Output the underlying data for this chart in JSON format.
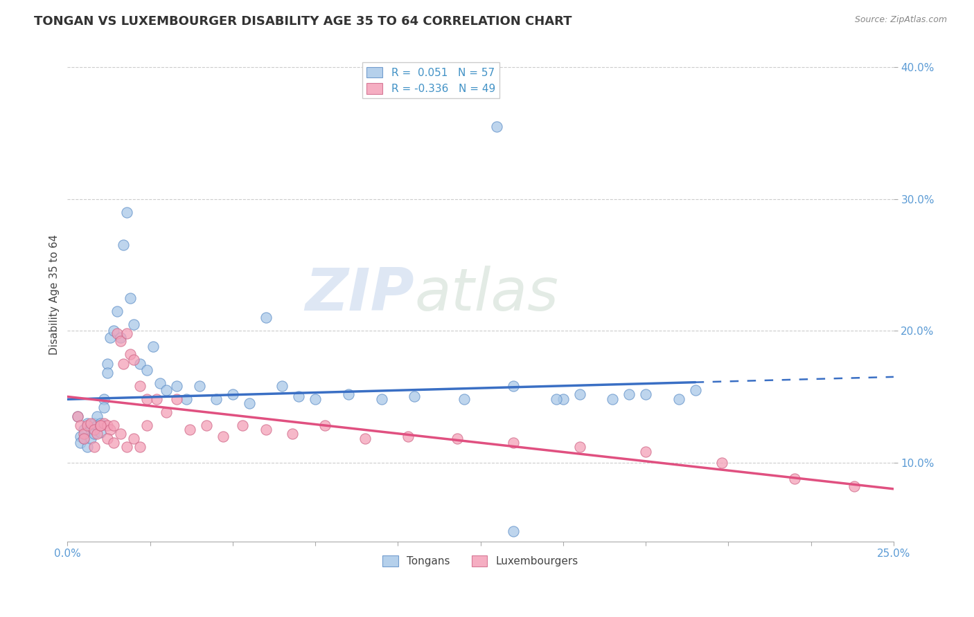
{
  "title": "TONGAN VS LUXEMBOURGER DISABILITY AGE 35 TO 64 CORRELATION CHART",
  "source_text": "Source: ZipAtlas.com",
  "ylabel": "Disability Age 35 to 64",
  "xlim": [
    0.0,
    0.25
  ],
  "ylim": [
    0.04,
    0.415
  ],
  "xticks": [
    0.0,
    0.025,
    0.05,
    0.075,
    0.1,
    0.125,
    0.15,
    0.175,
    0.2,
    0.225,
    0.25
  ],
  "xtick_labels": [
    "0.0%",
    "",
    "",
    "",
    "",
    "",
    "",
    "",
    "",
    "",
    "25.0%"
  ],
  "ytick_labels": [
    "10.0%",
    "20.0%",
    "30.0%",
    "40.0%"
  ],
  "yticks": [
    0.1,
    0.2,
    0.3,
    0.4
  ],
  "legend_blue_label": "R =  0.051   N = 57",
  "legend_pink_label": "R = -0.336   N = 49",
  "blue_color": "#a8c8e8",
  "pink_color": "#f4a0b8",
  "blue_line_color": "#3a6fc4",
  "pink_line_color": "#e05080",
  "blue_edge_color": "#6090c8",
  "pink_edge_color": "#d06888",
  "watermark_zip": "ZIP",
  "watermark_atlas": "atlas",
  "tongan_x": [
    0.003,
    0.004,
    0.004,
    0.005,
    0.005,
    0.006,
    0.006,
    0.007,
    0.007,
    0.008,
    0.008,
    0.009,
    0.009,
    0.01,
    0.01,
    0.011,
    0.011,
    0.012,
    0.012,
    0.013,
    0.014,
    0.015,
    0.016,
    0.017,
    0.018,
    0.019,
    0.02,
    0.022,
    0.024,
    0.026,
    0.028,
    0.03,
    0.033,
    0.036,
    0.04,
    0.045,
    0.05,
    0.055,
    0.06,
    0.065,
    0.07,
    0.075,
    0.085,
    0.095,
    0.105,
    0.12,
    0.135,
    0.15,
    0.17,
    0.19,
    0.13,
    0.148,
    0.155,
    0.165,
    0.175,
    0.185,
    0.135
  ],
  "tongan_y": [
    0.135,
    0.12,
    0.115,
    0.125,
    0.118,
    0.13,
    0.112,
    0.125,
    0.118,
    0.13,
    0.122,
    0.135,
    0.128,
    0.13,
    0.123,
    0.148,
    0.142,
    0.175,
    0.168,
    0.195,
    0.2,
    0.215,
    0.195,
    0.265,
    0.29,
    0.225,
    0.205,
    0.175,
    0.17,
    0.188,
    0.16,
    0.155,
    0.158,
    0.148,
    0.158,
    0.148,
    0.152,
    0.145,
    0.21,
    0.158,
    0.15,
    0.148,
    0.152,
    0.148,
    0.15,
    0.148,
    0.158,
    0.148,
    0.152,
    0.155,
    0.355,
    0.148,
    0.152,
    0.148,
    0.152,
    0.148,
    0.048
  ],
  "luxembourger_x": [
    0.003,
    0.004,
    0.005,
    0.006,
    0.007,
    0.008,
    0.009,
    0.01,
    0.011,
    0.012,
    0.013,
    0.014,
    0.015,
    0.016,
    0.017,
    0.018,
    0.019,
    0.02,
    0.022,
    0.024,
    0.027,
    0.03,
    0.033,
    0.037,
    0.042,
    0.047,
    0.053,
    0.06,
    0.068,
    0.078,
    0.09,
    0.103,
    0.118,
    0.135,
    0.155,
    0.175,
    0.198,
    0.22,
    0.238,
    0.005,
    0.008,
    0.01,
    0.012,
    0.014,
    0.016,
    0.018,
    0.02,
    0.022,
    0.024
  ],
  "luxembourger_y": [
    0.135,
    0.128,
    0.122,
    0.128,
    0.13,
    0.125,
    0.122,
    0.128,
    0.13,
    0.128,
    0.125,
    0.128,
    0.198,
    0.192,
    0.175,
    0.198,
    0.182,
    0.178,
    0.158,
    0.148,
    0.148,
    0.138,
    0.148,
    0.125,
    0.128,
    0.12,
    0.128,
    0.125,
    0.122,
    0.128,
    0.118,
    0.12,
    0.118,
    0.115,
    0.112,
    0.108,
    0.1,
    0.088,
    0.082,
    0.118,
    0.112,
    0.128,
    0.118,
    0.115,
    0.122,
    0.112,
    0.118,
    0.112,
    0.128
  ],
  "blue_line_x_start": 0.0,
  "blue_line_x_solid_end": 0.19,
  "blue_line_x_end": 0.25,
  "blue_line_y_start": 0.148,
  "blue_line_y_end": 0.165,
  "pink_line_x_start": 0.0,
  "pink_line_x_end": 0.25,
  "pink_line_y_start": 0.15,
  "pink_line_y_end": 0.08
}
